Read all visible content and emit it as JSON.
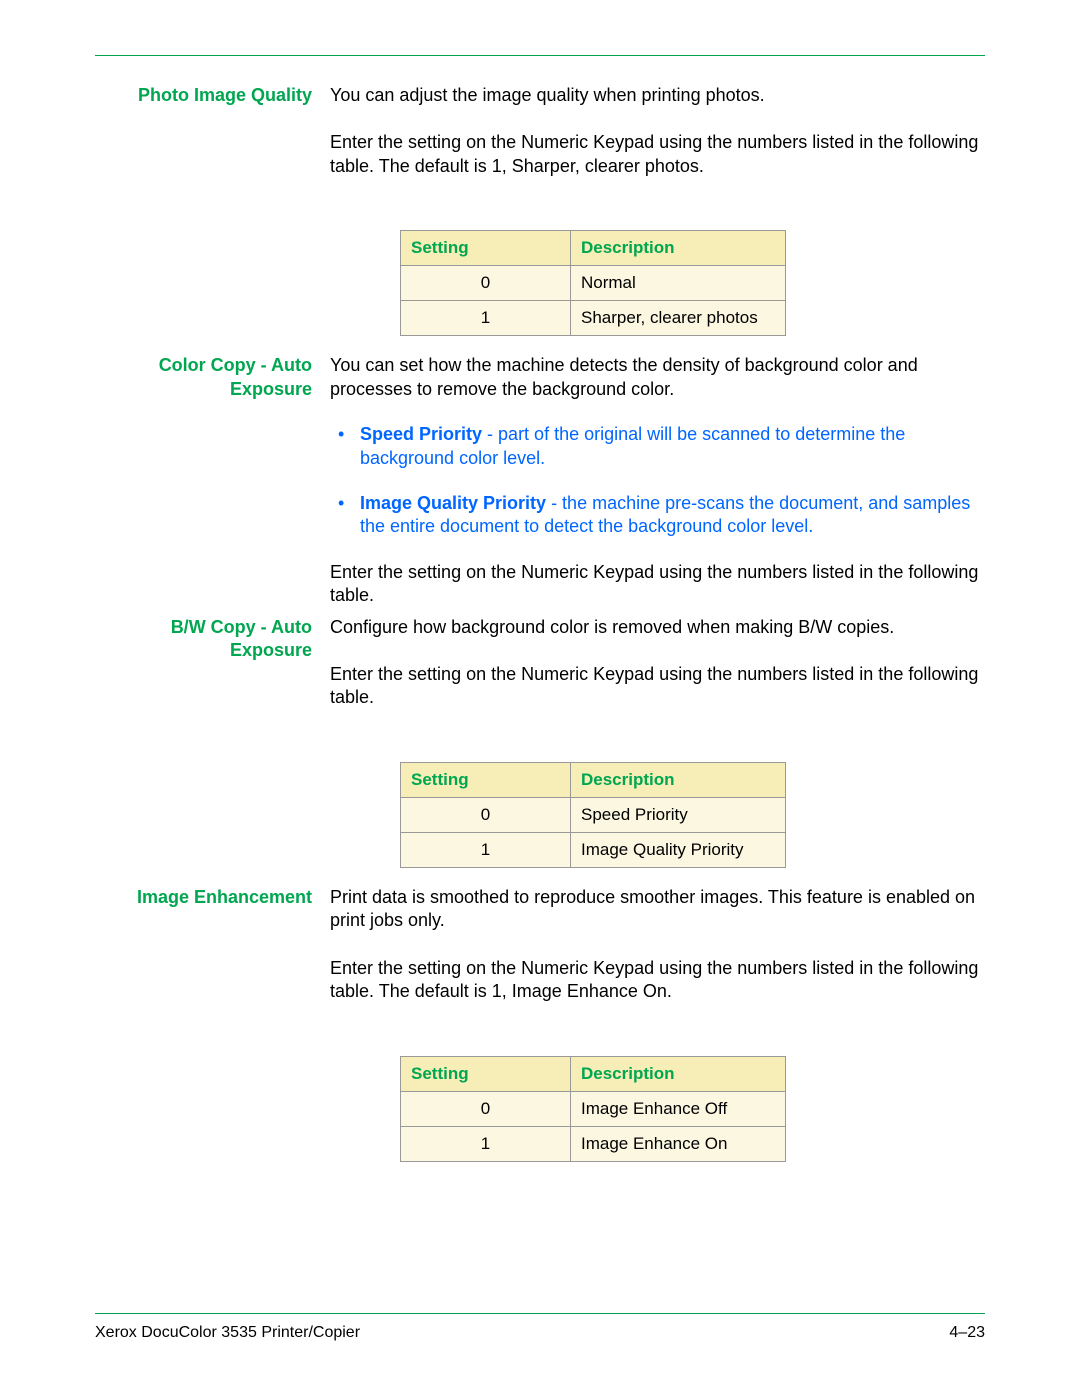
{
  "colors": {
    "accent_green": "#00a650",
    "link_blue": "#0066ff",
    "table_header_bg": "#f6edb7",
    "table_cell_bg": "#fbf7e1",
    "table_border": "#999999",
    "page_bg": "#ffffff",
    "text": "#000000"
  },
  "sections": {
    "photo_image_quality": {
      "label": "Photo Image Quality",
      "p1": "You can adjust the image quality when printing photos.",
      "p2": "Enter the setting on the Numeric Keypad using the numbers listed in the following table. The default is 1, Sharper, clearer photos.",
      "table": {
        "headers": {
          "setting": "Setting",
          "description": "Description"
        },
        "rows": [
          {
            "setting": "0",
            "description": "Normal"
          },
          {
            "setting": "1",
            "description": "Sharper, clearer photos"
          }
        ]
      }
    },
    "color_copy_auto_exposure": {
      "label": "Color Copy - Auto Exposure",
      "p1": "You can set how the machine detects the density of background color and processes to remove the background color.",
      "bullets": [
        {
          "strong": "Speed Priority",
          "text": " - part of the original will be scanned to determine the background color level."
        },
        {
          "strong": "Image Quality Priority",
          "text": " - the machine pre-scans the document, and samples the entire document to detect the background color level."
        }
      ],
      "p2": "Enter the setting on the Numeric Keypad using the numbers listed in the following table."
    },
    "bw_copy_auto_exposure": {
      "label": "B/W Copy - Auto Exposure",
      "p1": "Configure how background color is removed when making B/W copies.",
      "p2": "Enter the setting on the Numeric Keypad using the numbers listed in the following table.",
      "table": {
        "headers": {
          "setting": "Setting",
          "description": "Description"
        },
        "rows": [
          {
            "setting": "0",
            "description": "Speed Priority"
          },
          {
            "setting": "1",
            "description": "Image Quality Priority"
          }
        ]
      }
    },
    "image_enhancement": {
      "label": "Image Enhancement",
      "p1": "Print data is smoothed to reproduce smoother images. This feature is enabled on print jobs only.",
      "p2": "Enter the setting on the Numeric Keypad using the numbers listed in the following table. The default is 1, Image Enhance On.",
      "table": {
        "headers": {
          "setting": "Setting",
          "description": "Description"
        },
        "rows": [
          {
            "setting": "0",
            "description": "Image Enhance Off"
          },
          {
            "setting": "1",
            "description": "Image Enhance On"
          }
        ]
      }
    }
  },
  "footer": {
    "left": "Xerox DocuColor 3535 Printer/Copier",
    "right": "4–23"
  }
}
